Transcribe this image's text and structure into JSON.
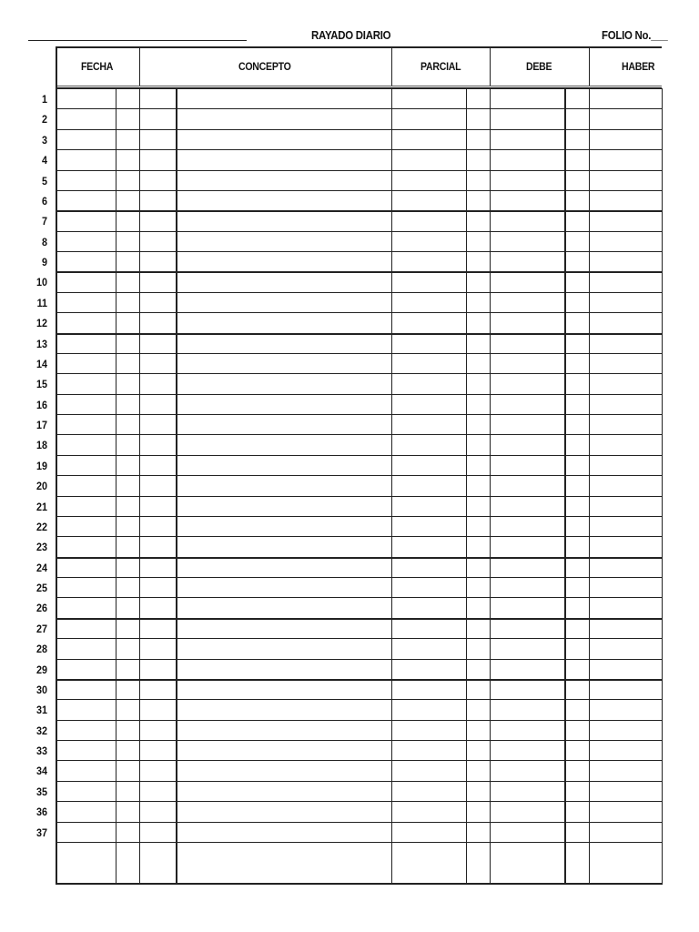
{
  "header": {
    "title": "RAYADO DIARIO",
    "folio_label": "FOLIO No.",
    "folio_value": "___"
  },
  "columns": [
    "FECHA",
    "CONCEPTO",
    "PARCIAL",
    "DEBE",
    "HABER"
  ],
  "row_numbers": [
    1,
    2,
    3,
    4,
    5,
    6,
    7,
    8,
    9,
    10,
    11,
    12,
    13,
    14,
    15,
    16,
    17,
    18,
    19,
    20,
    21,
    22,
    23,
    24,
    25,
    26,
    27,
    28,
    29,
    30,
    31,
    32,
    33,
    34,
    35,
    36,
    37
  ]
}
